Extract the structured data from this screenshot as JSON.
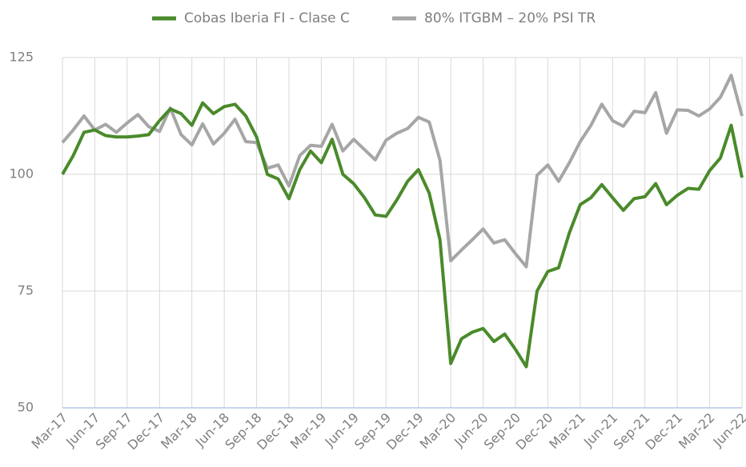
{
  "chart_data": {
    "type": "line",
    "categories": [
      "Mar-17",
      null,
      null,
      "Jun-17",
      null,
      null,
      "Sep-17",
      null,
      null,
      "Dec-17",
      null,
      null,
      "Mar-18",
      null,
      null,
      "Jun-18",
      null,
      null,
      "Sep-18",
      null,
      null,
      "Dec-18",
      null,
      null,
      "Mar-19",
      null,
      null,
      "Jun-19",
      null,
      null,
      "Sep-19",
      null,
      null,
      "Dec-19",
      null,
      null,
      "Mar-20",
      null,
      null,
      "Jun-20",
      null,
      null,
      "Sep-20",
      null,
      null,
      "Dec-20",
      null,
      null,
      "Mar-21",
      null,
      null,
      "Jun-21",
      null,
      null,
      "Sep-21",
      null,
      null,
      "Dec-21",
      null,
      null,
      "Mar-22",
      null,
      null,
      "Jun-22"
    ],
    "series": [
      {
        "name": "Cobas Iberia FI - Clase C",
        "color": "#4a8a2a",
        "values": [
          100,
          104,
          109,
          109.5,
          108.3,
          108,
          108,
          108.2,
          108.5,
          111.5,
          114,
          113,
          110.5,
          115.3,
          113,
          114.5,
          115,
          112.5,
          108,
          100,
          99,
          94.8,
          101,
          105,
          102.5,
          107.5,
          100,
          98,
          95,
          91.3,
          91,
          94.5,
          98.5,
          101,
          96,
          86,
          59.5,
          64.8,
          66.2,
          67,
          64.2,
          65.8,
          62.5,
          58.8,
          75,
          79.2,
          80,
          87.5,
          93.5,
          95,
          97.8,
          95,
          92.3,
          94.8,
          95.2,
          98,
          93.5,
          95.5,
          97,
          96.8,
          100.8,
          103.5,
          110.5,
          99.3
        ]
      },
      {
        "name": "80% ITGBM – 20% PSI TR",
        "color": "#a6a6a6",
        "values": [
          106.8,
          109.5,
          112.5,
          109.5,
          110.7,
          109,
          111,
          112.8,
          110.2,
          109.2,
          114.2,
          108.5,
          106.3,
          110.8,
          106.5,
          108.8,
          111.8,
          107,
          106.8,
          101.3,
          102,
          97.5,
          104,
          106.2,
          106,
          110.7,
          105,
          107.5,
          105.3,
          103.1,
          107.3,
          108.8,
          109.8,
          112.2,
          111.2,
          103,
          81.5,
          83.8,
          86,
          88.3,
          85.3,
          86,
          83,
          80.2,
          99.8,
          102,
          98.5,
          102.5,
          107,
          110.5,
          115,
          111.5,
          110.3,
          113.5,
          113.2,
          117.5,
          108.8,
          113.8,
          113.7,
          112.5,
          114,
          116.5,
          121.2,
          112.5
        ]
      }
    ],
    "ylim": [
      50,
      125
    ],
    "yticks": [
      50,
      75,
      100,
      125
    ],
    "grid": true,
    "legend": "top"
  }
}
